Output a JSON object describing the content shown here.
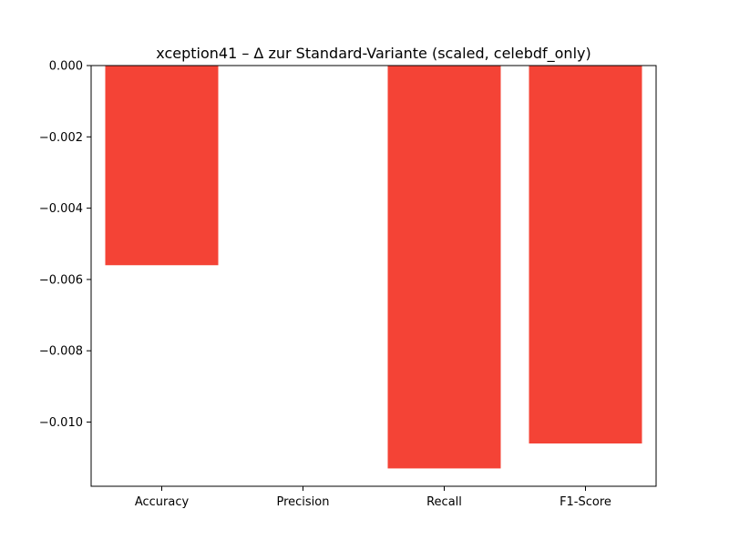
{
  "chart_data": {
    "type": "bar",
    "title": "xception41 – Δ zur Standard-Variante (scaled, celebdf_only)",
    "xlabel": "",
    "ylabel": "",
    "categories": [
      "Accuracy",
      "Precision",
      "Recall",
      "F1-Score"
    ],
    "values": [
      -0.0056,
      0.0,
      -0.0113,
      -0.0106
    ],
    "ylim": [
      -0.0118,
      0.0
    ],
    "yticks": [
      0.0,
      -0.002,
      -0.004,
      -0.006,
      -0.008,
      -0.01
    ],
    "ytick_labels": [
      "0.000",
      "−0.002",
      "−0.004",
      "−0.006",
      "−0.008",
      "−0.010"
    ],
    "bar_color": "#f44336",
    "grid": false,
    "legend": "none"
  }
}
